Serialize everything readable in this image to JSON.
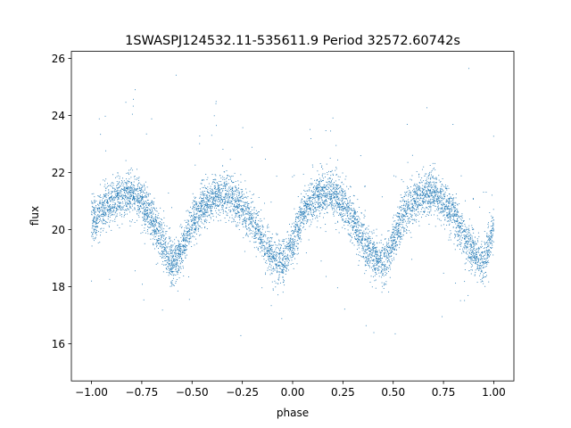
{
  "chart_data": {
    "type": "scatter",
    "title": "1SWASPJ124532.11-535611.9 Period 32572.60742s",
    "xlabel": "phase",
    "ylabel": "flux",
    "xlim": [
      -1.1,
      1.1
    ],
    "ylim": [
      14.7,
      26.25
    ],
    "x_ticks": [
      -1.0,
      -0.75,
      -0.5,
      -0.25,
      0.0,
      0.25,
      0.5,
      0.75,
      1.0
    ],
    "x_tick_labels": [
      "−1.00",
      "−0.75",
      "−0.50",
      "−0.25",
      "0.00",
      "0.25",
      "0.50",
      "0.75",
      "1.00"
    ],
    "y_ticks": [
      16,
      18,
      20,
      22,
      24,
      26
    ],
    "y_tick_labels": [
      "16",
      "18",
      "20",
      "22",
      "24",
      "26"
    ],
    "grid": false,
    "legend": "none",
    "point_color": "#1f77b4",
    "series": [
      {
        "phase_range": [
          -1.0,
          1.0
        ],
        "curve_phase": [
          -1.0,
          -0.95,
          -0.9,
          -0.85,
          -0.8,
          -0.75,
          -0.7,
          -0.65,
          -0.6,
          -0.55,
          -0.5,
          -0.45,
          -0.4,
          -0.35,
          -0.3,
          -0.25,
          -0.2,
          -0.15,
          -0.1,
          -0.05,
          0.0,
          0.05,
          0.1,
          0.15,
          0.2,
          0.25,
          0.3,
          0.35,
          0.4,
          0.45,
          0.5,
          0.55,
          0.6,
          0.65,
          0.7,
          0.75,
          0.8,
          0.85,
          0.9,
          0.95,
          1.0
        ],
        "curve_flux": [
          20.2,
          20.7,
          21.0,
          21.2,
          21.3,
          21.0,
          20.4,
          19.6,
          18.8,
          19.3,
          20.2,
          20.8,
          21.1,
          21.3,
          21.1,
          20.8,
          20.3,
          19.6,
          19.1,
          18.8,
          19.5,
          20.6,
          21.1,
          21.3,
          21.3,
          20.9,
          20.3,
          19.6,
          19.1,
          18.8,
          19.6,
          20.5,
          21.0,
          21.3,
          21.3,
          21.0,
          20.5,
          19.8,
          19.2,
          18.8,
          20.2
        ]
      }
    ]
  }
}
